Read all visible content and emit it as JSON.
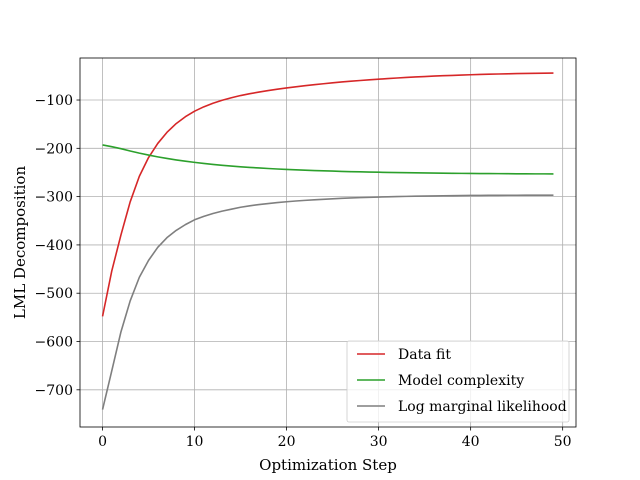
{
  "chart_data": {
    "type": "line",
    "title": "",
    "xlabel": "Optimization Step",
    "ylabel": "LML Decomposition",
    "xlim": [
      -2.45,
      51.45
    ],
    "ylim": [
      -777,
      -13
    ],
    "xticks": [
      0,
      10,
      20,
      30,
      40,
      50
    ],
    "yticks": [
      -700,
      -600,
      -500,
      -400,
      -300,
      -200,
      -100
    ],
    "xtick_labels": [
      "0",
      "10",
      "20",
      "30",
      "40",
      "50"
    ],
    "ytick_labels": [
      "−700",
      "−600",
      "−500",
      "−400",
      "−300",
      "−200",
      "−100"
    ],
    "grid": true,
    "legend_position": "lower-right",
    "x": [
      0,
      1,
      2,
      3,
      4,
      5,
      6,
      7,
      8,
      9,
      10,
      11,
      12,
      13,
      14,
      15,
      16,
      17,
      18,
      19,
      20,
      21,
      22,
      23,
      24,
      25,
      26,
      27,
      28,
      29,
      30,
      31,
      32,
      33,
      34,
      35,
      36,
      37,
      38,
      39,
      40,
      41,
      42,
      43,
      44,
      45,
      46,
      47,
      48,
      49
    ],
    "series": [
      {
        "name": "Data fit",
        "color": "#d62728",
        "values": [
          -548.0,
          -454.2,
          -379.3,
          -311.0,
          -257.8,
          -219.1,
          -189.9,
          -166.9,
          -148.8,
          -134.6,
          -123.1,
          -114.1,
          -106.7,
          -100.5,
          -95.3,
          -90.7,
          -86.9,
          -83.6,
          -80.5,
          -77.6,
          -75.0,
          -72.7,
          -70.4,
          -68.2,
          -66.3,
          -64.3,
          -62.6,
          -61.0,
          -59.6,
          -58.2,
          -56.9,
          -55.6,
          -54.4,
          -53.3,
          -52.3,
          -51.4,
          -50.5,
          -49.7,
          -49.0,
          -48.3,
          -47.7,
          -47.1,
          -46.6,
          -46.1,
          -45.7,
          -45.3,
          -45.0,
          -44.7,
          -44.4,
          -44.2
        ]
      },
      {
        "name": "Model complexity",
        "color": "#2ca02c",
        "values": [
          -193.0,
          -196.6,
          -200.8,
          -205.5,
          -210.0,
          -214.0,
          -217.7,
          -221.0,
          -224.0,
          -226.7,
          -229.1,
          -231.3,
          -233.3,
          -235.1,
          -236.7,
          -238.2,
          -239.5,
          -240.7,
          -241.8,
          -242.8,
          -243.7,
          -244.5,
          -245.3,
          -246.0,
          -246.6,
          -247.2,
          -247.8,
          -248.3,
          -248.7,
          -249.1,
          -249.5,
          -249.9,
          -250.2,
          -250.5,
          -250.8,
          -251.0,
          -251.3,
          -251.5,
          -251.7,
          -251.9,
          -252.0,
          -252.2,
          -252.3,
          -252.4,
          -252.6,
          -252.7,
          -252.8,
          -252.9,
          -252.9,
          -253.0
        ]
      },
      {
        "name": "Log marginal likelihood",
        "color": "#7f7f7f",
        "values": [
          -741.0,
          -661.0,
          -580.0,
          -516.0,
          -467.0,
          -432.0,
          -405.0,
          -385.0,
          -370.0,
          -358.0,
          -348.0,
          -341.0,
          -335.0,
          -330.0,
          -326.0,
          -322.0,
          -319.0,
          -316.5,
          -314.3,
          -312.3,
          -310.6,
          -309.1,
          -307.8,
          -306.6,
          -305.5,
          -304.5,
          -303.6,
          -302.8,
          -302.1,
          -301.5,
          -300.9,
          -300.4,
          -299.9,
          -299.5,
          -299.1,
          -298.8,
          -298.5,
          -298.2,
          -298.0,
          -297.8,
          -297.6,
          -297.5,
          -297.4,
          -297.3,
          -297.2,
          -297.2,
          -297.1,
          -297.1,
          -297.1,
          -297.1
        ]
      }
    ]
  }
}
